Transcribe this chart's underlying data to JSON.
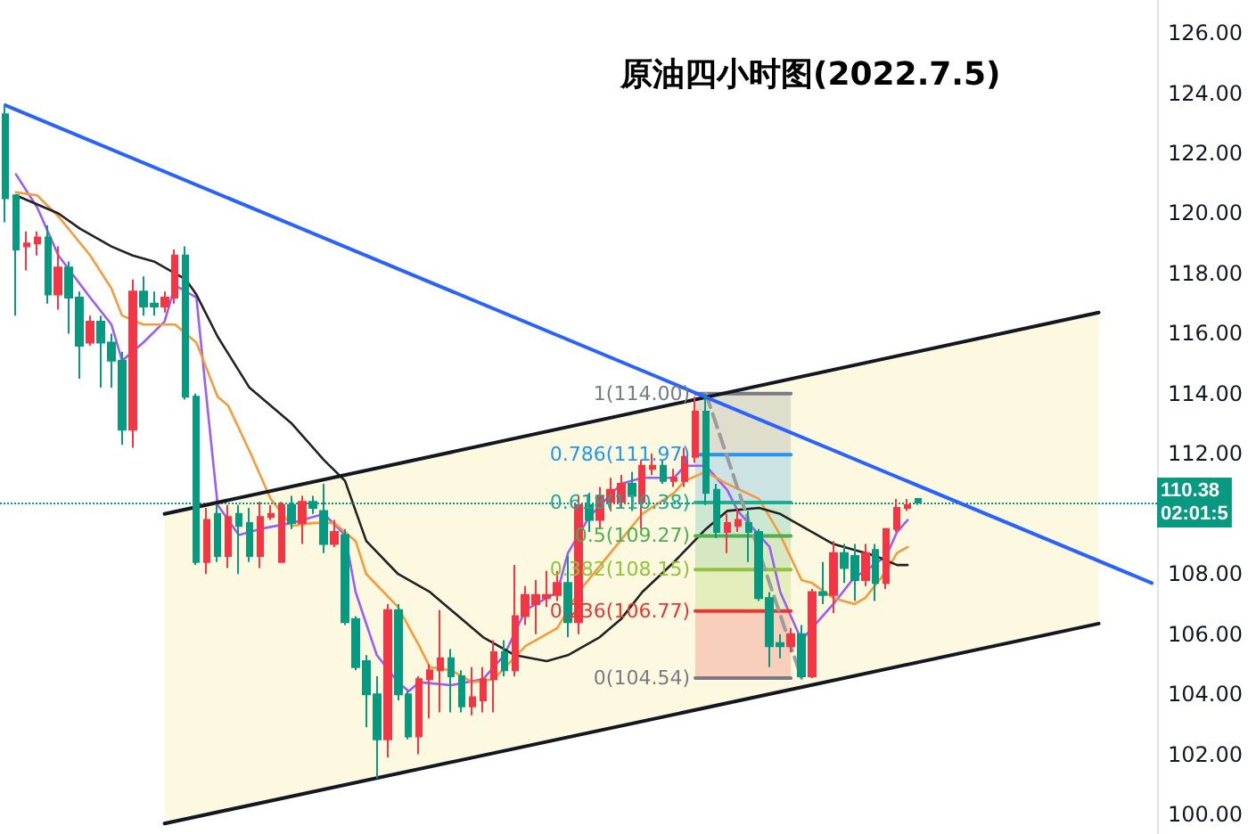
{
  "chart_data": {
    "type": "candlestick",
    "title": "原油四小时图(2022.7.5)",
    "categories": [
      null,
      null,
      null,
      null,
      null,
      null,
      null,
      null,
      null,
      null,
      null,
      null,
      null,
      null,
      null,
      null,
      null,
      null,
      null,
      null,
      null,
      null,
      null,
      null,
      null,
      null,
      null,
      null,
      null,
      null,
      null,
      null,
      null,
      null,
      null,
      null,
      null,
      null,
      null,
      null,
      null,
      null,
      null,
      null,
      null,
      null,
      null,
      null,
      null,
      null,
      null,
      null,
      null,
      null,
      null,
      null,
      null,
      null,
      null,
      null,
      null,
      null,
      null,
      null,
      null,
      null,
      null,
      null,
      null,
      null,
      null,
      null,
      null,
      null,
      null,
      null,
      null,
      null,
      null,
      null,
      null,
      null,
      null,
      null,
      null,
      null,
      null,
      null,
      null,
      null,
      null,
      null,
      null,
      null,
      null,
      null,
      null,
      null,
      null,
      null,
      null,
      null,
      null,
      null,
      null,
      null,
      null,
      null,
      null
    ],
    "ohlc": [
      [
        123.3,
        123.6,
        119.7,
        120.5
      ],
      [
        120.6,
        120.6,
        116.6,
        118.8
      ],
      [
        118.9,
        119.4,
        118.1,
        119.0
      ],
      [
        119.0,
        119.4,
        118.6,
        119.2
      ],
      [
        119.2,
        119.6,
        117.0,
        117.3
      ],
      [
        117.3,
        118.9,
        116.8,
        118.2
      ],
      [
        118.2,
        118.4,
        116.0,
        117.2
      ],
      [
        117.2,
        117.4,
        114.5,
        115.6
      ],
      [
        115.7,
        116.6,
        115.6,
        116.4
      ],
      [
        116.4,
        116.6,
        114.2,
        115.7
      ],
      [
        115.7,
        116.0,
        114.2,
        115.1
      ],
      [
        115.1,
        115.4,
        112.3,
        112.8
      ],
      [
        112.8,
        117.8,
        112.2,
        117.4
      ],
      [
        117.4,
        117.9,
        116.6,
        116.9
      ],
      [
        117.0,
        117.4,
        116.6,
        116.9
      ],
      [
        116.9,
        117.4,
        116.7,
        117.2
      ],
      [
        117.2,
        118.8,
        117.0,
        118.6
      ],
      [
        118.6,
        118.9,
        113.8,
        113.9
      ],
      [
        113.9,
        114.0,
        108.3,
        108.4
      ],
      [
        108.4,
        110.2,
        108.0,
        109.8
      ],
      [
        110.0,
        110.3,
        108.4,
        108.6
      ],
      [
        108.6,
        110.3,
        108.2,
        109.9
      ],
      [
        110.0,
        110.3,
        108.0,
        109.6
      ],
      [
        109.7,
        110.2,
        108.4,
        108.6
      ],
      [
        108.6,
        110.4,
        108.2,
        109.9
      ],
      [
        109.9,
        110.3,
        109.8,
        110.0
      ],
      [
        108.4,
        110.4,
        108.4,
        110.3
      ],
      [
        110.3,
        110.6,
        109.5,
        109.7
      ],
      [
        109.7,
        110.6,
        109.0,
        110.4
      ],
      [
        110.4,
        110.6,
        110.0,
        110.2
      ],
      [
        110.1,
        111.0,
        108.7,
        109.0
      ],
      [
        109.0,
        109.8,
        108.9,
        109.4
      ],
      [
        109.3,
        109.5,
        106.3,
        106.4
      ],
      [
        106.5,
        106.6,
        104.8,
        104.9
      ],
      [
        105.1,
        105.3,
        102.9,
        104.0
      ],
      [
        104.0,
        104.6,
        101.2,
        102.5
      ],
      [
        102.5,
        107.0,
        101.9,
        106.8
      ],
      [
        106.8,
        107.0,
        103.8,
        104.0
      ],
      [
        104.0,
        104.1,
        102.5,
        102.6
      ],
      [
        102.6,
        104.6,
        102.0,
        104.5
      ],
      [
        104.5,
        105.0,
        103.2,
        104.8
      ],
      [
        104.8,
        106.8,
        103.4,
        105.2
      ],
      [
        105.2,
        105.5,
        103.4,
        104.6
      ],
      [
        104.6,
        104.8,
        103.4,
        103.6
      ],
      [
        103.6,
        104.9,
        103.3,
        103.9
      ],
      [
        103.8,
        104.9,
        103.4,
        104.5
      ],
      [
        104.5,
        105.8,
        103.4,
        105.4
      ],
      [
        105.4,
        105.8,
        104.6,
        104.8
      ],
      [
        104.8,
        108.3,
        104.6,
        106.6
      ],
      [
        106.6,
        107.6,
        106.3,
        107.3
      ],
      [
        107.0,
        107.8,
        106.0,
        107.3
      ],
      [
        107.2,
        108.1,
        106.9,
        107.3
      ],
      [
        107.3,
        108.1,
        107.1,
        107.7
      ],
      [
        107.7,
        108.6,
        105.9,
        106.4
      ],
      [
        106.4,
        110.6,
        106.0,
        110.3
      ],
      [
        110.3,
        110.7,
        109.4,
        109.8
      ],
      [
        109.8,
        110.9,
        109.5,
        110.6
      ],
      [
        110.4,
        111.2,
        110.1,
        110.8
      ],
      [
        110.4,
        111.3,
        110.2,
        111.0
      ],
      [
        111.0,
        111.4,
        110.1,
        110.6
      ],
      [
        110.4,
        111.8,
        109.5,
        111.6
      ],
      [
        111.5,
        112.0,
        111.3,
        111.6
      ],
      [
        111.6,
        111.8,
        111.0,
        111.1
      ],
      [
        111.1,
        111.5,
        110.9,
        111.2
      ],
      [
        111.1,
        112.2,
        110.9,
        111.9
      ],
      [
        111.9,
        113.9,
        111.7,
        113.4
      ],
      [
        113.4,
        114.0,
        110.3,
        110.7
      ],
      [
        110.8,
        111.0,
        109.2,
        109.4
      ],
      [
        109.4,
        110.0,
        108.7,
        109.7
      ],
      [
        109.6,
        110.2,
        109.4,
        109.8
      ],
      [
        109.7,
        110.1,
        108.4,
        109.4
      ],
      [
        109.4,
        109.5,
        107.1,
        107.2
      ],
      [
        107.2,
        107.4,
        104.9,
        105.6
      ],
      [
        105.7,
        106.0,
        105.2,
        105.6
      ],
      [
        105.6,
        106.2,
        105.4,
        106.0
      ],
      [
        106.0,
        106.3,
        104.54,
        104.6
      ],
      [
        104.6,
        107.5,
        104.54,
        107.4
      ],
      [
        107.4,
        108.4,
        107.0,
        107.3
      ],
      [
        107.3,
        109.1,
        106.7,
        108.7
      ],
      [
        108.7,
        109.0,
        107.7,
        108.2
      ],
      [
        108.6,
        109.0,
        107.1,
        107.8
      ],
      [
        107.8,
        109.0,
        107.6,
        108.7
      ],
      [
        108.8,
        109.0,
        107.1,
        107.7
      ],
      [
        107.7,
        109.5,
        107.5,
        109.5
      ],
      [
        109.5,
        110.5,
        109.4,
        110.2
      ],
      [
        110.2,
        110.5,
        110.1,
        110.3
      ],
      [
        110.5,
        110.5,
        110.3,
        110.38
      ],
      null,
      null,
      null,
      null,
      null,
      null,
      null,
      null,
      null,
      null,
      null,
      null,
      null,
      null,
      null,
      null,
      null,
      null,
      null,
      null,
      null,
      null
    ],
    "colors": [
      "#089981",
      "#089981",
      "#f23645",
      "#f23645",
      "#089981",
      "#f23645",
      "#089981",
      "#089981",
      "#f23645",
      "#089981",
      "#089981",
      "#089981",
      "#f23645",
      "#089981",
      "#089981",
      "#f23645",
      "#f23645",
      "#089981",
      "#089981",
      "#f23645",
      "#089981",
      "#f23645",
      "#089981",
      "#089981",
      "#f23645",
      "#f23645",
      "#f23645",
      "#089981",
      "#f23645",
      "#089981",
      "#089981",
      "#f23645",
      "#089981",
      "#089981",
      "#089981",
      "#089981",
      "#f23645",
      "#089981",
      "#089981",
      "#f23645",
      "#f23645",
      "#f23645",
      "#089981",
      "#089981",
      "#f23645",
      "#f23645",
      "#f23645",
      "#089981",
      "#f23645",
      "#f23645",
      "#f23645",
      "#f23645",
      "#f23645",
      "#089981",
      "#f23645",
      "#089981",
      "#f23645",
      "#f23645",
      "#f23645",
      "#089981",
      "#f23645",
      "#f23645",
      "#089981",
      "#f23645",
      "#f23645",
      "#f23645",
      "#089981",
      "#089981",
      "#f23645",
      "#f23645",
      "#089981",
      "#089981",
      "#089981",
      "#089981",
      "#f23645",
      "#089981",
      "#f23645",
      "#089981",
      "#f23645",
      "#089981",
      "#089981",
      "#f23645",
      "#089981",
      "#f23645",
      "#f23645",
      "#f23645",
      "#089981",
      null,
      null,
      null,
      null,
      null,
      null,
      null,
      null,
      null,
      null,
      null,
      null,
      null,
      null,
      null,
      null,
      null,
      null,
      null,
      null,
      null,
      null
    ],
    "series": [
      {
        "type": "line",
        "color": "#787b86",
        "values": [
          null,
          null,
          null,
          null,
          null,
          null,
          null,
          null,
          null,
          null,
          null,
          null,
          null,
          null,
          null,
          null,
          null,
          null,
          null,
          null,
          null,
          null,
          null,
          null,
          null,
          null,
          null,
          null,
          null,
          null,
          null,
          null,
          null,
          null,
          null,
          null,
          null,
          null,
          null,
          null,
          null,
          null,
          null,
          null,
          null,
          null,
          null,
          null,
          null,
          null,
          null,
          null,
          null,
          null,
          null,
          null,
          null,
          null,
          null,
          null,
          null,
          null,
          null,
          null,
          null,
          114.0,
          null,
          null,
          null,
          null,
          null,
          null,
          null,
          null,
          114.0,
          null,
          null,
          null,
          null,
          null,
          null,
          null,
          null,
          null,
          null,
          null,
          null,
          null,
          null,
          null,
          null,
          null,
          null,
          null,
          null,
          null,
          null,
          null,
          null,
          null,
          null,
          null,
          null,
          null,
          null,
          null,
          null,
          null,
          null
        ]
      },
      {
        "type": "line",
        "color": "#2196f3",
        "values": [
          null,
          null,
          null,
          null,
          null,
          null,
          null,
          null,
          null,
          null,
          null,
          null,
          null,
          null,
          null,
          null,
          null,
          null,
          null,
          null,
          null,
          null,
          null,
          null,
          null,
          null,
          null,
          null,
          null,
          null,
          null,
          null,
          null,
          null,
          null,
          null,
          null,
          null,
          null,
          null,
          null,
          null,
          null,
          null,
          null,
          null,
          null,
          null,
          null,
          null,
          null,
          null,
          null,
          null,
          null,
          null,
          null,
          null,
          null,
          null,
          null,
          null,
          null,
          null,
          null,
          111.97,
          null,
          null,
          null,
          null,
          null,
          null,
          null,
          null,
          111.97,
          null,
          null,
          null,
          null,
          null,
          null,
          null,
          null,
          null,
          null,
          null,
          null,
          null,
          null,
          null,
          null,
          null,
          null,
          null,
          null,
          null,
          null,
          null,
          null,
          null,
          null,
          null,
          null,
          null,
          null,
          null,
          null,
          null,
          null
        ]
      },
      {
        "type": "line",
        "color": "#22ab94",
        "values": [
          null,
          null,
          null,
          null,
          null,
          null,
          null,
          null,
          null,
          null,
          null,
          null,
          null,
          null,
          null,
          null,
          null,
          null,
          null,
          null,
          null,
          null,
          null,
          null,
          null,
          null,
          null,
          null,
          null,
          null,
          null,
          null,
          null,
          null,
          null,
          null,
          null,
          null,
          null,
          null,
          null,
          null,
          null,
          null,
          null,
          null,
          null,
          null,
          null,
          null,
          null,
          null,
          null,
          null,
          null,
          null,
          null,
          null,
          null,
          null,
          null,
          null,
          null,
          null,
          null,
          110.38,
          null,
          null,
          null,
          null,
          null,
          null,
          null,
          null,
          110.38,
          null,
          null,
          null,
          null,
          null,
          null,
          null,
          null,
          null,
          null,
          null,
          null,
          null,
          null,
          null,
          null,
          null,
          null,
          null,
          null,
          null,
          null,
          null,
          null,
          null,
          null,
          null,
          null,
          null,
          null,
          null,
          null,
          null,
          null
        ]
      },
      {
        "type": "line",
        "color": "#4caf50",
        "values": [
          null,
          null,
          null,
          null,
          null,
          null,
          null,
          null,
          null,
          null,
          null,
          null,
          null,
          null,
          null,
          null,
          null,
          null,
          null,
          null,
          null,
          null,
          null,
          null,
          null,
          null,
          null,
          null,
          null,
          null,
          null,
          null,
          null,
          null,
          null,
          null,
          null,
          null,
          null,
          null,
          null,
          null,
          null,
          null,
          null,
          null,
          null,
          null,
          null,
          null,
          null,
          null,
          null,
          null,
          null,
          null,
          null,
          null,
          null,
          null,
          null,
          null,
          null,
          null,
          null,
          109.27,
          null,
          null,
          null,
          null,
          null,
          null,
          null,
          null,
          109.27,
          null,
          null,
          null,
          null,
          null,
          null,
          null,
          null,
          null,
          null,
          null,
          null,
          null,
          null,
          null,
          null,
          null,
          null,
          null,
          null,
          null,
          null,
          null,
          null,
          null,
          null,
          null,
          null,
          null,
          null,
          null,
          null,
          null,
          null
        ]
      },
      {
        "type": "line",
        "color": "#8fc43c",
        "values": [
          null,
          null,
          null,
          null,
          null,
          null,
          null,
          null,
          null,
          null,
          null,
          null,
          null,
          null,
          null,
          null,
          null,
          null,
          null,
          null,
          null,
          null,
          null,
          null,
          null,
          null,
          null,
          null,
          null,
          null,
          null,
          null,
          null,
          null,
          null,
          null,
          null,
          null,
          null,
          null,
          null,
          null,
          null,
          null,
          null,
          null,
          null,
          null,
          null,
          null,
          null,
          null,
          null,
          null,
          null,
          null,
          null,
          null,
          null,
          null,
          null,
          null,
          null,
          null,
          null,
          108.15,
          null,
          null,
          null,
          null,
          null,
          null,
          null,
          null,
          108.15,
          null,
          null,
          null,
          null,
          null,
          null,
          null,
          null,
          null,
          null,
          null,
          null,
          null,
          null,
          null,
          null,
          null,
          null,
          null,
          null,
          null,
          null,
          null,
          null,
          null,
          null,
          null,
          null,
          null,
          null,
          null,
          null,
          null,
          null
        ]
      },
      {
        "type": "line",
        "color": "#e53935",
        "values": [
          null,
          null,
          null,
          null,
          null,
          null,
          null,
          null,
          null,
          null,
          null,
          null,
          null,
          null,
          null,
          null,
          null,
          null,
          null,
          null,
          null,
          null,
          null,
          null,
          null,
          null,
          null,
          null,
          null,
          null,
          null,
          null,
          null,
          null,
          null,
          null,
          null,
          null,
          null,
          null,
          null,
          null,
          null,
          null,
          null,
          null,
          null,
          null,
          null,
          null,
          null,
          null,
          null,
          null,
          null,
          null,
          null,
          null,
          null,
          null,
          null,
          null,
          null,
          null,
          null,
          106.77,
          null,
          null,
          null,
          null,
          null,
          null,
          null,
          null,
          106.77,
          null,
          null,
          null,
          null,
          null,
          null,
          null,
          null,
          null,
          null,
          null,
          null,
          null,
          null,
          null,
          null,
          null,
          null,
          null,
          null,
          null,
          null,
          null,
          null,
          null,
          null,
          null,
          null,
          null,
          null,
          null,
          null,
          null,
          null
        ]
      },
      {
        "type": "line",
        "color": "#787b86",
        "values": [
          null,
          null,
          null,
          null,
          null,
          null,
          null,
          null,
          null,
          null,
          null,
          null,
          null,
          null,
          null,
          null,
          null,
          null,
          null,
          null,
          null,
          null,
          null,
          null,
          null,
          null,
          null,
          null,
          null,
          null,
          null,
          null,
          null,
          null,
          null,
          null,
          null,
          null,
          null,
          null,
          null,
          null,
          null,
          null,
          null,
          null,
          null,
          null,
          null,
          null,
          null,
          null,
          null,
          null,
          null,
          null,
          null,
          null,
          null,
          null,
          null,
          null,
          null,
          null,
          null,
          104.54,
          null,
          null,
          null,
          null,
          null,
          null,
          null,
          null,
          104.54,
          null,
          null,
          null,
          null,
          null,
          null,
          null,
          null,
          null,
          null,
          null,
          null,
          null,
          null,
          null,
          null,
          null,
          null,
          null,
          null,
          null,
          null,
          null,
          null,
          null,
          null,
          null,
          null,
          null,
          null,
          null,
          null,
          null,
          null
        ]
      },
      {
        "type": "line",
        "color": "#9b9ba0",
        "line_style": "dashed",
        "values": [
          null,
          null,
          null,
          null,
          null,
          null,
          null,
          null,
          null,
          null,
          null,
          null,
          null,
          null,
          null,
          null,
          null,
          null,
          null,
          null,
          null,
          null,
          null,
          null,
          null,
          null,
          null,
          null,
          null,
          null,
          null,
          null,
          null,
          null,
          null,
          null,
          null,
          null,
          null,
          null,
          null,
          null,
          null,
          null,
          null,
          null,
          null,
          null,
          null,
          null,
          null,
          null,
          null,
          null,
          null,
          null,
          null,
          null,
          null,
          null,
          null,
          null,
          null,
          null,
          null,
          null,
          114.0,
          null,
          null,
          null,
          null,
          null,
          null,
          null,
          null,
          104.54,
          null,
          null,
          null,
          null,
          null,
          null,
          null,
          null,
          null,
          null,
          null,
          null,
          null,
          null,
          null,
          null,
          null,
          null,
          null,
          null,
          null,
          null,
          null,
          null,
          null,
          null,
          null,
          null,
          null,
          null,
          null,
          null,
          null
        ]
      },
      {
        "type": "line",
        "color": "#131722",
        "values": [
          null,
          null,
          null,
          null,
          null,
          null,
          null,
          null,
          null,
          null,
          null,
          null,
          null,
          null,
          null,
          110.0,
          null,
          null,
          null,
          null,
          null,
          null,
          null,
          null,
          null,
          null,
          null,
          null,
          null,
          null,
          null,
          null,
          null,
          null,
          null,
          null,
          null,
          null,
          null,
          null,
          null,
          null,
          null,
          null,
          null,
          null,
          null,
          null,
          null,
          null,
          null,
          null,
          null,
          null,
          null,
          null,
          null,
          null,
          null,
          null,
          null,
          null,
          null,
          null,
          null,
          null,
          null,
          null,
          null,
          null,
          null,
          null,
          null,
          null,
          null,
          null,
          null,
          null,
          null,
          null,
          null,
          null,
          null,
          null,
          null,
          null,
          null,
          null,
          null,
          null,
          null,
          null,
          null,
          null,
          null,
          null,
          null,
          null,
          null,
          null,
          null,
          null,
          null,
          116.7,
          null,
          null,
          null,
          null,
          null
        ]
      },
      {
        "type": "line",
        "color": "#131722",
        "values": [
          null,
          null,
          null,
          null,
          null,
          null,
          null,
          null,
          null,
          null,
          null,
          null,
          null,
          null,
          null,
          99.7,
          null,
          null,
          null,
          null,
          null,
          null,
          null,
          null,
          null,
          null,
          null,
          null,
          null,
          null,
          null,
          null,
          null,
          null,
          null,
          null,
          null,
          null,
          null,
          null,
          null,
          null,
          null,
          null,
          null,
          null,
          null,
          null,
          null,
          null,
          null,
          null,
          null,
          null,
          null,
          null,
          null,
          null,
          null,
          null,
          null,
          null,
          null,
          null,
          null,
          null,
          null,
          null,
          null,
          null,
          null,
          null,
          null,
          null,
          null,
          null,
          null,
          null,
          null,
          null,
          null,
          null,
          null,
          null,
          null,
          null,
          null,
          null,
          null,
          null,
          null,
          null,
          null,
          null,
          null,
          null,
          null,
          null,
          null,
          null,
          null,
          null,
          null,
          106.35,
          null,
          null,
          null,
          null,
          null
        ]
      },
      {
        "type": "line",
        "color": "#9c5cf6",
        "values": [
          null,
          121.3,
          null,
          120.2,
          null,
          118.6,
          null,
          null,
          117.2,
          null,
          116.3,
          115.1,
          null,
          115.7,
          null,
          116.4,
          117.6,
          null,
          117.2,
          113.7,
          110.3,
          null,
          109.3,
          null,
          109.5,
          null,
          null,
          109.7,
          null,
          null,
          110.0,
          null,
          109.3,
          107.4,
          null,
          105.3,
          null,
          104.4,
          104.1,
          104.4,
          null,
          null,
          104.3,
          null,
          null,
          104.5,
          null,
          105.3,
          null,
          106.8,
          null,
          null,
          107.4,
          108.7,
          null,
          109.9,
          null,
          null,
          111.0,
          null,
          111.2,
          null,
          null,
          111.2,
          111.6,
          null,
          111.6,
          null,
          110.8,
          110.1,
          null,
          null,
          108.9,
          107.4,
          null,
          105.8,
          106.2,
          null,
          107.0,
          null,
          107.9,
          108.1,
          null,
          108.6,
          109.4,
          109.8,
          null,
          null,
          null,
          null,
          null,
          null,
          null,
          null,
          null,
          null,
          null,
          null,
          null,
          null,
          null,
          null,
          null,
          null,
          null,
          null,
          null,
          null,
          null
        ]
      },
      {
        "type": "line",
        "color": "#f59b3c",
        "values": [
          null,
          120.7,
          null,
          120.6,
          null,
          119.9,
          null,
          null,
          118.6,
          null,
          117.5,
          116.6,
          null,
          116.3,
          null,
          null,
          116.3,
          null,
          115.7,
          null,
          113.9,
          113.6,
          null,
          112.1,
          null,
          110.5,
          null,
          109.6,
          null,
          109.7,
          null,
          109.7,
          null,
          109.1,
          108.0,
          null,
          null,
          106.9,
          null,
          105.6,
          104.9,
          null,
          104.8,
          null,
          104.4,
          null,
          104.5,
          null,
          null,
          105.6,
          null,
          null,
          106.2,
          null,
          107.4,
          null,
          null,
          108.7,
          null,
          null,
          110.0,
          null,
          null,
          110.7,
          111.1,
          null,
          111.4,
          null,
          111.0,
          null,
          null,
          110.5,
          null,
          109.3,
          null,
          107.8,
          107.7,
          null,
          107.2,
          null,
          107.0,
          107.2,
          null,
          108.1,
          108.7,
          108.9,
          null,
          null,
          null,
          null,
          null,
          null,
          null,
          null,
          null,
          null,
          null,
          null,
          null,
          null,
          null,
          null,
          null,
          null,
          null,
          null,
          null,
          null,
          null
        ]
      },
      {
        "type": "line",
        "color": "#222222",
        "values": [
          null,
          120.6,
          null,
          null,
          null,
          120.0,
          null,
          119.5,
          null,
          null,
          118.9,
          null,
          118.6,
          null,
          118.4,
          null,
          null,
          117.8,
          117.3,
          null,
          115.9,
          null,
          null,
          114.2,
          null,
          null,
          null,
          113.0,
          null,
          null,
          111.8,
          null,
          111.1,
          null,
          109.1,
          null,
          null,
          108.0,
          null,
          null,
          107.4,
          null,
          106.8,
          null,
          null,
          105.9,
          null,
          null,
          105.3,
          null,
          null,
          105.1,
          null,
          105.3,
          null,
          null,
          105.9,
          null,
          106.5,
          null,
          107.4,
          null,
          null,
          108.4,
          null,
          null,
          109.5,
          null,
          110.1,
          null,
          null,
          110.2,
          null,
          110.0,
          null,
          null,
          109.4,
          null,
          109.0,
          null,
          null,
          null,
          108.6,
          null,
          108.3,
          108.3,
          null,
          null,
          null,
          null,
          null,
          null,
          null,
          null,
          null,
          null,
          null,
          null,
          null,
          null,
          null,
          null,
          null,
          null,
          null,
          null,
          null,
          null,
          null
        ]
      },
      {
        "type": "line",
        "color": "#2962ff",
        "values": [
          123.6,
          null,
          null,
          null,
          null,
          null,
          null,
          null,
          null,
          null,
          null,
          null,
          null,
          null,
          null,
          null,
          null,
          null,
          null,
          null,
          null,
          null,
          null,
          null,
          null,
          null,
          null,
          null,
          null,
          null,
          null,
          null,
          null,
          null,
          null,
          null,
          null,
          null,
          null,
          null,
          null,
          null,
          null,
          null,
          null,
          null,
          null,
          null,
          null,
          null,
          null,
          null,
          null,
          null,
          null,
          null,
          null,
          null,
          null,
          null,
          null,
          null,
          null,
          null,
          null,
          null,
          null,
          null,
          null,
          null,
          null,
          null,
          null,
          null,
          null,
          null,
          null,
          null,
          null,
          null,
          null,
          null,
          null,
          null,
          null,
          null,
          null,
          null,
          null,
          null,
          null,
          null,
          null,
          null,
          null,
          null,
          null,
          null,
          null,
          null,
          null,
          null,
          null,
          null,
          null,
          null,
          null,
          null,
          107.7
        ]
      }
    ],
    "annotations": [
      "1(114.00)",
      "0.786(111.97)",
      "0.618(110.38)",
      "0.5(109.27)",
      "0.382(108.15)",
      "0.236(106.77)",
      "0(104.54)"
    ],
    "ref_lines": [
      {
        "axis": "y",
        "value": 110.38,
        "label": "110.38\n02:01:5",
        "color": "#089981",
        "line_style": "dotted"
      }
    ],
    "ylim": [
      99.35,
      127.1
    ],
    "yticks": [
      {
        "value": 100,
        "label": "100.00"
      },
      {
        "value": 102,
        "label": "102.00"
      },
      {
        "value": 104,
        "label": "104.00"
      },
      {
        "value": 106,
        "label": "106.00"
      },
      {
        "value": 108,
        "label": "108.00"
      },
      {
        "value": 112,
        "label": "112.00"
      },
      {
        "value": 114,
        "label": "114.00"
      },
      {
        "value": 116,
        "label": "116.00"
      },
      {
        "value": 118,
        "label": "118.00"
      },
      {
        "value": 120,
        "label": "120.00"
      },
      {
        "value": 122,
        "label": "122.00"
      },
      {
        "value": 124,
        "label": "124.00"
      },
      {
        "value": 126,
        "label": "126.00"
      }
    ],
    "tick_labels": "y",
    "grid": false,
    "line_style": "solid"
  }
}
